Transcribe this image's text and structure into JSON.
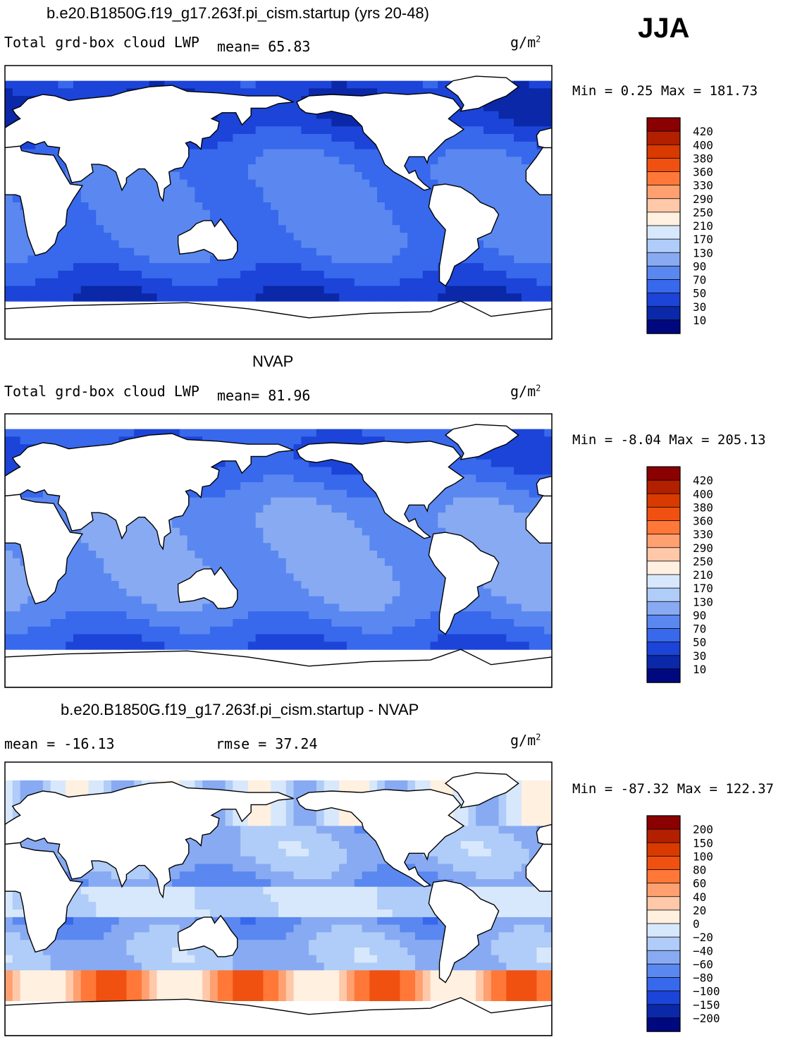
{
  "figure": {
    "season": "JJA",
    "colors": {
      "frame": "#000000",
      "land": "#ffffff"
    }
  },
  "panels": [
    {
      "id": "model",
      "title": "b.e20.B1850G.f19_g17.263f.pi_cism.startup (yrs 20-48)",
      "variable": "Total grd-box cloud LWP",
      "stat1": "mean=  65.83",
      "stat2": "",
      "units": "g/m",
      "units_sup": "2",
      "minmax": "Min =   0.25 Max = 181.73",
      "legend_labels": [
        "420",
        "400",
        "380",
        "360",
        "330",
        "290",
        "250",
        "210",
        "170",
        "130",
        "90",
        "70",
        "50",
        "30",
        "10"
      ],
      "legend_colors": [
        "#8b0000",
        "#b22000",
        "#d83a00",
        "#f05010",
        "#ff7838",
        "#ffa070",
        "#ffc8a8",
        "#fff0e0",
        "#d8e8fc",
        "#b0ccf8",
        "#88aaf2",
        "#5a88f0",
        "#3868ec",
        "#1c44d8",
        "#0a28a8",
        "#000880"
      ]
    },
    {
      "id": "obs",
      "title": "NVAP",
      "variable": "Total grd-box cloud LWP",
      "stat1": "mean=  81.96",
      "stat2": "",
      "units": "g/m",
      "units_sup": "2",
      "minmax": "Min =  -8.04 Max = 205.13",
      "legend_labels": [
        "420",
        "400",
        "380",
        "360",
        "330",
        "290",
        "250",
        "210",
        "170",
        "130",
        "90",
        "70",
        "50",
        "30",
        "10"
      ],
      "legend_colors": [
        "#8b0000",
        "#b22000",
        "#d83a00",
        "#f05010",
        "#ff7838",
        "#ffa070",
        "#ffc8a8",
        "#fff0e0",
        "#d8e8fc",
        "#b0ccf8",
        "#88aaf2",
        "#5a88f0",
        "#3868ec",
        "#1c44d8",
        "#0a28a8",
        "#000880"
      ]
    },
    {
      "id": "diff",
      "title": "b.e20.B1850G.f19_g17.263f.pi_cism.startup - NVAP",
      "variable": "",
      "stat1": "mean = -16.13",
      "stat2": "rmse =  37.24",
      "units": "g/m",
      "units_sup": "2",
      "minmax": "Min = -87.32 Max = 122.37",
      "legend_labels": [
        "200",
        "150",
        "100",
        "80",
        "60",
        "40",
        "20",
        "0",
        "−20",
        "−40",
        "−60",
        "−80",
        "−100",
        "−150",
        "−200"
      ],
      "legend_colors": [
        "#8b0000",
        "#b22000",
        "#d83a00",
        "#f05010",
        "#ff7838",
        "#ffa070",
        "#ffc8a8",
        "#fff0e0",
        "#d8e8fc",
        "#b0ccf8",
        "#88aaf2",
        "#5a88f0",
        "#3868ec",
        "#1c44d8",
        "#0a28a8",
        "#000880"
      ]
    }
  ],
  "chart_data": [
    {
      "type": "heatmap",
      "title": "b.e20.B1850G.f19_g17.263f.pi_cism.startup (yrs 20-48)",
      "variable": "Total grd-box cloud LWP",
      "units": "g/m2",
      "season": "JJA",
      "mean": 65.83,
      "min": 0.25,
      "max": 181.73,
      "levels": [
        10,
        30,
        50,
        70,
        90,
        130,
        170,
        210,
        250,
        290,
        330,
        360,
        380,
        400,
        420
      ]
    },
    {
      "type": "heatmap",
      "title": "NVAP",
      "variable": "Total grd-box cloud LWP",
      "units": "g/m2",
      "mean": 81.96,
      "min": -8.04,
      "max": 205.13,
      "levels": [
        10,
        30,
        50,
        70,
        90,
        130,
        170,
        210,
        250,
        290,
        330,
        360,
        380,
        400,
        420
      ]
    },
    {
      "type": "heatmap",
      "title": "b.e20.B1850G.f19_g17.263f.pi_cism.startup - NVAP",
      "units": "g/m2",
      "mean": -16.13,
      "rmse": 37.24,
      "min": -87.32,
      "max": 122.37,
      "levels": [
        -200,
        -150,
        -100,
        -80,
        -60,
        -40,
        -20,
        0,
        20,
        40,
        60,
        80,
        100,
        150,
        200
      ]
    }
  ]
}
